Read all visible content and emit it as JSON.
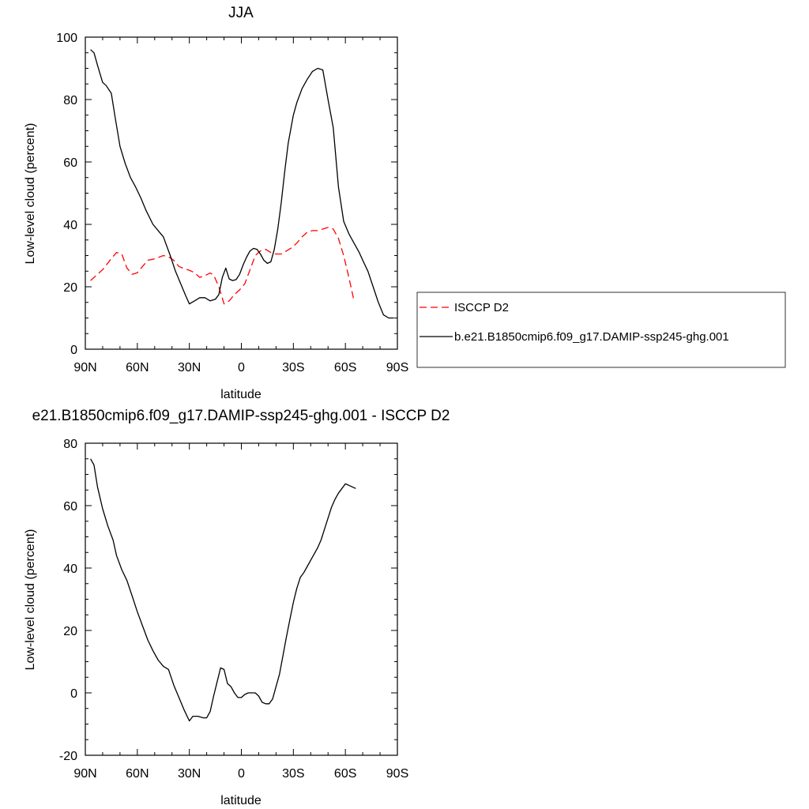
{
  "chart_data": [
    {
      "type": "line",
      "title": "JJA",
      "xlabel": "latitude",
      "ylabel": "Low-level cloud (percent)",
      "xlim": [
        90,
        -90
      ],
      "ylim": [
        0,
        100
      ],
      "x_ticks": [
        90,
        60,
        30,
        0,
        -30,
        -60,
        -90
      ],
      "x_tick_labels": [
        "90N",
        "60N",
        "30N",
        "0",
        "30S",
        "60S",
        "90S"
      ],
      "y_ticks": [
        0,
        20,
        40,
        60,
        80,
        100
      ],
      "y_tick_labels": [
        "0",
        "20",
        "40",
        "60",
        "80",
        "100"
      ],
      "legend_position": "right",
      "series": [
        {
          "name": "ISCCP D2",
          "color": "#ff0000",
          "style": "dashed",
          "x": [
            87,
            84,
            80,
            75,
            72,
            69,
            66,
            63,
            60,
            57,
            54,
            51,
            48,
            45,
            42,
            39,
            36,
            33,
            30,
            27,
            24,
            21,
            18,
            16,
            13,
            10,
            7,
            4,
            1,
            -2,
            -5,
            -8,
            -11,
            -14,
            -17,
            -20,
            -23,
            -26,
            -29,
            -32,
            -35,
            -38,
            -41,
            -44,
            -47,
            -50,
            -53,
            -56,
            -59,
            -62,
            -65
          ],
          "values": [
            22,
            23.5,
            25.5,
            29,
            31,
            30.5,
            26,
            24,
            24.5,
            26.5,
            28.5,
            28.8,
            29.4,
            30,
            29.6,
            28.5,
            26.5,
            25.8,
            25.3,
            24.5,
            23,
            23.6,
            24.4,
            23.8,
            20,
            14.5,
            15.5,
            17.5,
            19,
            21,
            25.5,
            30,
            31.5,
            32,
            31,
            30.5,
            30.5,
            31.5,
            32.5,
            34,
            36,
            37.5,
            38,
            38,
            38.5,
            39,
            38.5,
            35.5,
            30,
            23,
            15.5
          ]
        },
        {
          "name": "b.e21.B1850cmip6.f09_g17.DAMIP-ssp245-ghg.001",
          "color": "#000000",
          "style": "solid",
          "x": [
            87,
            85,
            83,
            80,
            78,
            75,
            73,
            70,
            67,
            64,
            61,
            58,
            55,
            51,
            48,
            45,
            41,
            38,
            35,
            32,
            30,
            27,
            24,
            21,
            18,
            15,
            13,
            11,
            9,
            7,
            5,
            3,
            1,
            -1,
            -3,
            -5,
            -7,
            -9,
            -11,
            -13,
            -15,
            -17,
            -19,
            -21,
            -23,
            -25,
            -27,
            -30,
            -32,
            -35,
            -38,
            -41,
            -44,
            -47,
            -50,
            -53,
            -56,
            -59,
            -62,
            -65,
            -68,
            -70,
            -73,
            -76,
            -79,
            -82,
            -85,
            -88
          ],
          "values": [
            96,
            95,
            91,
            85.5,
            84.5,
            82,
            75,
            65,
            59.5,
            55,
            52,
            48.5,
            44.5,
            40,
            38,
            36,
            30,
            25,
            21,
            17,
            14.5,
            15.5,
            16.5,
            16.5,
            15.5,
            16,
            17.5,
            23,
            26,
            22.5,
            22,
            22.3,
            24,
            27,
            29.5,
            31.5,
            32.3,
            32,
            30.5,
            28.5,
            27.5,
            28,
            32,
            38.5,
            47,
            57,
            66,
            75,
            79,
            83.5,
            86.5,
            89,
            90,
            89.5,
            80,
            71,
            52,
            41,
            37,
            34,
            31,
            28.5,
            25,
            20,
            15,
            11,
            10,
            10
          ]
        }
      ]
    },
    {
      "type": "line",
      "title": "e21.B1850cmip6.f09_g17.DAMIP-ssp245-ghg.001 - ISCCP D2",
      "xlabel": "latitude",
      "ylabel": "Low-level cloud (percent)",
      "xlim": [
        90,
        -90
      ],
      "ylim": [
        -20,
        80
      ],
      "x_ticks": [
        90,
        60,
        30,
        0,
        -30,
        -60,
        -90
      ],
      "x_tick_labels": [
        "90N",
        "60N",
        "30N",
        "0",
        "30S",
        "60S",
        "90S"
      ],
      "y_ticks": [
        -20,
        0,
        20,
        40,
        60,
        80
      ],
      "y_tick_labels": [
        "-20",
        "0",
        "20",
        "40",
        "60",
        "80"
      ],
      "series": [
        {
          "color": "#000000",
          "style": "solid",
          "x": [
            87,
            85,
            83,
            80,
            77,
            74,
            72,
            69,
            66,
            63,
            60,
            57,
            54,
            51,
            48,
            45,
            42,
            39,
            36,
            33,
            30,
            28,
            25,
            22,
            20,
            18,
            16,
            14,
            12,
            10,
            8,
            6,
            4,
            2,
            0,
            -2,
            -4,
            -6,
            -8,
            -10,
            -12,
            -14,
            -16,
            -18,
            -20,
            -22,
            -24,
            -26,
            -28,
            -30,
            -32,
            -34,
            -36,
            -38,
            -40,
            -42,
            -44,
            -46,
            -48,
            -50,
            -52,
            -54,
            -56,
            -58,
            -60,
            -62,
            -64,
            -66
          ],
          "values": [
            75,
            73,
            66,
            59,
            53.5,
            49,
            44,
            39.5,
            36,
            31,
            26,
            21.5,
            17,
            13.5,
            10.5,
            8.5,
            7.5,
            2.5,
            -1.5,
            -5.5,
            -9,
            -7.5,
            -7.5,
            -8,
            -8,
            -6,
            -1,
            3.5,
            8,
            7.5,
            3,
            2,
            0,
            -1.5,
            -1.5,
            -0.5,
            0,
            0,
            0,
            -1,
            -3,
            -3.5,
            -3.5,
            -2,
            2,
            6,
            12,
            18,
            23.5,
            29,
            33.5,
            37,
            38.5,
            40.5,
            42.5,
            44.5,
            46.5,
            49,
            52.5,
            56,
            59.5,
            62,
            64,
            65.5,
            67,
            66.5,
            66,
            65.5
          ]
        }
      ]
    }
  ]
}
